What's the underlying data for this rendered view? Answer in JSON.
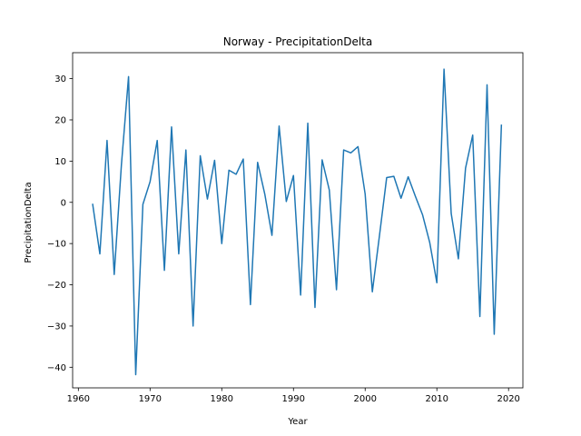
{
  "chart_data": {
    "type": "line",
    "title": "Norway - PrecipitationDelta",
    "xlabel": "Year",
    "ylabel": "PrecipitationDelta",
    "xlim": [
      1959.2,
      2022.0
    ],
    "ylim": [
      -45.0,
      36.3
    ],
    "xticks": [
      1960,
      1970,
      1980,
      1990,
      2000,
      2010,
      2020
    ],
    "yticks": [
      -40,
      -30,
      -20,
      -10,
      0,
      10,
      20,
      30
    ],
    "grid": false,
    "line_color": "#1f77b4",
    "series": [
      {
        "x": [
          1962,
          1963,
          1964,
          1965,
          1966,
          1967,
          1968,
          1969,
          1970,
          1971,
          1972,
          1973,
          1974,
          1975,
          1976,
          1977,
          1978,
          1979,
          1980,
          1981,
          1982,
          1983,
          1984,
          1985,
          1986,
          1987,
          1988,
          1989,
          1990,
          1991,
          1992,
          1993,
          1994,
          1995,
          1996,
          1997,
          1998,
          1999,
          2000,
          2001,
          2002,
          2003,
          2004,
          2005,
          2006,
          2007,
          2008,
          2009,
          2010,
          2011,
          2012,
          2013,
          2014,
          2015,
          2016,
          2017,
          2018,
          2019
        ],
        "values": [
          -0.5,
          -12.5,
          15.0,
          -17.5,
          9.0,
          30.5,
          -41.8,
          -0.5,
          5.0,
          15.0,
          -16.5,
          18.3,
          -12.5,
          12.7,
          -30.0,
          11.3,
          0.8,
          10.2,
          -10.0,
          7.8,
          6.8,
          10.5,
          -24.8,
          9.7,
          2.0,
          -8.0,
          18.5,
          0.2,
          6.5,
          -22.5,
          19.2,
          -25.5,
          10.3,
          3.0,
          -21.2,
          12.7,
          12.0,
          13.5,
          2.0,
          -21.7,
          -8.0,
          6.0,
          6.3,
          1.0,
          6.2,
          1.5,
          -3.0,
          -9.7,
          -19.5,
          32.3,
          -2.7,
          -13.7,
          8.3,
          16.3,
          -27.7,
          28.5,
          -32.0,
          18.7
        ]
      }
    ]
  }
}
